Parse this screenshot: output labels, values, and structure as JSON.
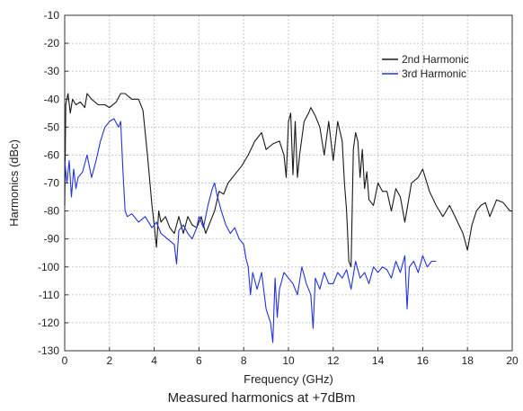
{
  "caption": "Measured harmonics at +7dBm",
  "chart_data": {
    "type": "line",
    "title": "",
    "xlabel": "Frequency (GHz)",
    "ylabel": "Harmonics (dBc)",
    "xlim": [
      0,
      20
    ],
    "ylim": [
      -130,
      -10
    ],
    "xticks": [
      0,
      2,
      4,
      6,
      8,
      10,
      12,
      14,
      16,
      18,
      20
    ],
    "yticks": [
      -10,
      -20,
      -30,
      -40,
      -50,
      -60,
      -70,
      -80,
      -90,
      -100,
      -110,
      -120,
      -130
    ],
    "grid": true,
    "legend": "top-right",
    "series": [
      {
        "name": "2nd Harmonic",
        "color": "#1a1a1a",
        "x": [
          0,
          0.05,
          0.15,
          0.25,
          0.35,
          0.5,
          0.7,
          0.9,
          1.0,
          1.2,
          1.5,
          1.8,
          2.0,
          2.3,
          2.5,
          2.7,
          3.0,
          3.3,
          3.5,
          3.7,
          3.9,
          4.0,
          4.1,
          4.2,
          4.3,
          4.5,
          4.7,
          4.9,
          5.1,
          5.3,
          5.5,
          5.7,
          5.9,
          6.1,
          6.3,
          6.5,
          6.7,
          6.9,
          7.1,
          7.3,
          7.6,
          7.9,
          8.2,
          8.5,
          8.8,
          9.0,
          9.3,
          9.6,
          9.8,
          9.9,
          10.0,
          10.1,
          10.2,
          10.3,
          10.4,
          10.5,
          10.7,
          10.9,
          11.0,
          11.2,
          11.4,
          11.6,
          11.8,
          12.0,
          12.2,
          12.4,
          12.5,
          12.6,
          12.7,
          12.8,
          12.9,
          13.0,
          13.1,
          13.2,
          13.3,
          13.4,
          13.5,
          13.6,
          13.8,
          14.0,
          14.2,
          14.4,
          14.6,
          14.8,
          15.0,
          15.2,
          15.5,
          15.8,
          16.0,
          16.3,
          16.6,
          16.9,
          17.2,
          17.5,
          17.8,
          18.0,
          18.2,
          18.4,
          18.6,
          18.8,
          19.0,
          19.3,
          19.6,
          19.9,
          20.0
        ],
        "y": [
          -78,
          -42,
          -38,
          -45,
          -40,
          -42,
          -41,
          -43,
          -38,
          -40,
          -42,
          -42,
          -43,
          -41,
          -38,
          -38,
          -40,
          -40,
          -44,
          -60,
          -78,
          -85,
          -93,
          -80,
          -84,
          -82,
          -86,
          -88,
          -82,
          -88,
          -82,
          -85,
          -86,
          -82,
          -88,
          -84,
          -80,
          -73,
          -74,
          -70,
          -67,
          -64,
          -60,
          -55,
          -52,
          -58,
          -56,
          -55,
          -60,
          -68,
          -48,
          -45,
          -67,
          -48,
          -68,
          -60,
          -48,
          -45,
          -43,
          -46,
          -50,
          -60,
          -48,
          -62,
          -48,
          -55,
          -70,
          -80,
          -98,
          -100,
          -58,
          -52,
          -55,
          -68,
          -58,
          -72,
          -66,
          -76,
          -78,
          -70,
          -73,
          -73,
          -80,
          -72,
          -75,
          -84,
          -70,
          -68,
          -65,
          -73,
          -78,
          -82,
          -78,
          -83,
          -88,
          -94,
          -85,
          -80,
          -78,
          -77,
          -82,
          -76,
          -77,
          -80,
          -80
        ]
      },
      {
        "name": "3rd Harmonic",
        "color": "#2233dd",
        "x": [
          0,
          0.1,
          0.2,
          0.3,
          0.4,
          0.5,
          0.6,
          0.8,
          1.0,
          1.2,
          1.4,
          1.6,
          1.8,
          2.0,
          2.2,
          2.4,
          2.5,
          2.6,
          2.7,
          2.8,
          3.0,
          3.3,
          3.6,
          3.9,
          4.1,
          4.3,
          4.6,
          4.9,
          5.0,
          5.1,
          5.3,
          5.5,
          5.7,
          5.9,
          6.0,
          6.2,
          6.4,
          6.6,
          6.7,
          6.8,
          7.0,
          7.2,
          7.4,
          7.6,
          7.8,
          8.0,
          8.1,
          8.2,
          8.3,
          8.4,
          8.6,
          8.8,
          9.0,
          9.2,
          9.3,
          9.4,
          9.5,
          9.6,
          9.8,
          10.0,
          10.2,
          10.4,
          10.6,
          10.8,
          11.0,
          11.1,
          11.2,
          11.4,
          11.6,
          11.8,
          12.0,
          12.2,
          12.4,
          12.6,
          12.8,
          13.0,
          13.2,
          13.4,
          13.6,
          13.8,
          14.0,
          14.2,
          14.4,
          14.6,
          14.8,
          15.0,
          15.2,
          15.3,
          15.4,
          15.6,
          15.8,
          16.0,
          16.2,
          16.4,
          16.6
        ],
        "y": [
          -62,
          -70,
          -62,
          -75,
          -65,
          -72,
          -68,
          -66,
          -60,
          -68,
          -62,
          -55,
          -50,
          -48,
          -47,
          -50,
          -48,
          -65,
          -80,
          -82,
          -81,
          -84,
          -82,
          -86,
          -84,
          -88,
          -90,
          -92,
          -99,
          -87,
          -85,
          -88,
          -90,
          -86,
          -82,
          -86,
          -78,
          -72,
          -70,
          -74,
          -80,
          -85,
          -88,
          -86,
          -90,
          -92,
          -97,
          -100,
          -110,
          -102,
          -108,
          -102,
          -115,
          -120,
          -127,
          -104,
          -118,
          -108,
          -102,
          -104,
          -106,
          -110,
          -100,
          -106,
          -110,
          -122,
          -104,
          -108,
          -102,
          -106,
          -106,
          -102,
          -104,
          -101,
          -108,
          -98,
          -104,
          -102,
          -106,
          -100,
          -102,
          -100,
          -101,
          -104,
          -98,
          -102,
          -96,
          -115,
          -100,
          -98,
          -102,
          -96,
          -100,
          -98,
          -98
        ]
      }
    ]
  }
}
